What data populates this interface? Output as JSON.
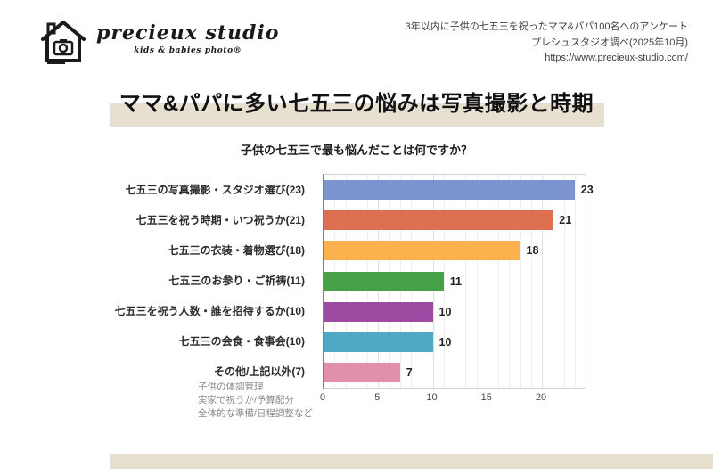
{
  "header": {
    "brand": "precieux studio",
    "tagline": "kids & babies photo®",
    "survey_lines": [
      "3年以内に子供の七五三を祝ったママ&パパ100名へのアンケート",
      "プレシュスタジオ調べ(2025年10月)",
      "https://www.precieux-studio.com/"
    ]
  },
  "title": "ママ&パパに多い七五三の悩みは写真撮影と時期",
  "theme": {
    "accent_band": "#e7e0d1"
  },
  "chart_data": {
    "type": "bar",
    "orientation": "horizontal",
    "title": "子供の七五三で最も悩んだことは何ですか？",
    "categories": [
      "七五三の写真撮影・スタジオ選び(23)",
      "七五三を祝う時期・いつ祝うか(21)",
      "七五三の衣装・着物選び(18)",
      "七五三のお参り・ご祈祷(11)",
      "七五三を祝う人数・誰を招待するか(10)",
      "七五三の会食・食事会(10)",
      "その他/上記以外(7)"
    ],
    "values": [
      23,
      21,
      18,
      11,
      10,
      10,
      7
    ],
    "colors": [
      "#7b94d0",
      "#dd7051",
      "#fbb24e",
      "#45a046",
      "#9d4ba2",
      "#4fa9c4",
      "#e28fa9"
    ],
    "xticks": [
      0,
      5,
      10,
      15,
      20
    ],
    "xlim": [
      0,
      24
    ],
    "grid": "minor vertical every 1, major every 5",
    "legend": "none",
    "note_lines": [
      "子供の体調管理",
      "実家で祝うか/予算配分",
      "全体的な準備/日程調整など"
    ]
  }
}
